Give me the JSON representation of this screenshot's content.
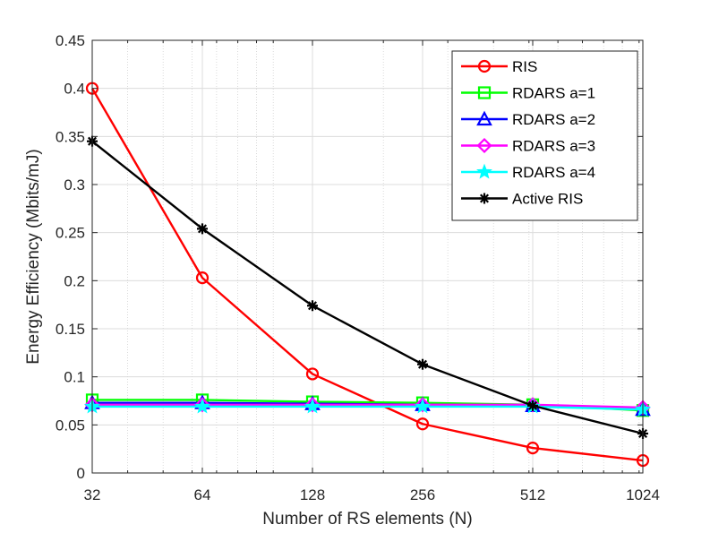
{
  "chart_data": {
    "type": "line",
    "title": "",
    "xlabel": "Number of RS elements (N)",
    "ylabel": "Energy Efficiency (Mbits/mJ)",
    "xscale": "log2",
    "x": [
      32,
      64,
      128,
      256,
      512,
      1024
    ],
    "x_tick_labels": [
      "32",
      "64",
      "128",
      "256",
      "512",
      "1024"
    ],
    "xlim": [
      32,
      1024
    ],
    "ylim": [
      0,
      0.45
    ],
    "y_ticks": [
      0,
      0.05,
      0.1,
      0.15,
      0.2,
      0.25,
      0.3,
      0.35,
      0.4,
      0.45
    ],
    "y_tick_labels": [
      "0",
      "0.05",
      "0.1",
      "0.15",
      "0.2",
      "0.25",
      "0.3",
      "0.35",
      "0.4",
      "0.45"
    ],
    "grid": true,
    "legend_position": "top-right",
    "series": [
      {
        "name": "RIS",
        "color": "#ff0000",
        "marker": "circle",
        "values": [
          0.4,
          0.203,
          0.103,
          0.051,
          0.026,
          0.013
        ]
      },
      {
        "name": "RDARS a=1",
        "color": "#00ff00",
        "marker": "square",
        "values": [
          0.076,
          0.076,
          0.074,
          0.073,
          0.071,
          0.065
        ]
      },
      {
        "name": "RDARS a=2",
        "color": "#0000ff",
        "marker": "triangle",
        "values": [
          0.073,
          0.073,
          0.072,
          0.071,
          0.07,
          0.066
        ]
      },
      {
        "name": "RDARS a=3",
        "color": "#ff00ff",
        "marker": "diamond",
        "values": [
          0.071,
          0.071,
          0.071,
          0.071,
          0.071,
          0.068
        ]
      },
      {
        "name": "RDARS a=4",
        "color": "#00ffff",
        "marker": "pentagram",
        "values": [
          0.069,
          0.069,
          0.069,
          0.069,
          0.069,
          0.066
        ]
      },
      {
        "name": "Active RIS",
        "color": "#000000",
        "marker": "asterisk",
        "values": [
          0.345,
          0.254,
          0.174,
          0.113,
          0.07,
          0.041
        ]
      }
    ]
  }
}
